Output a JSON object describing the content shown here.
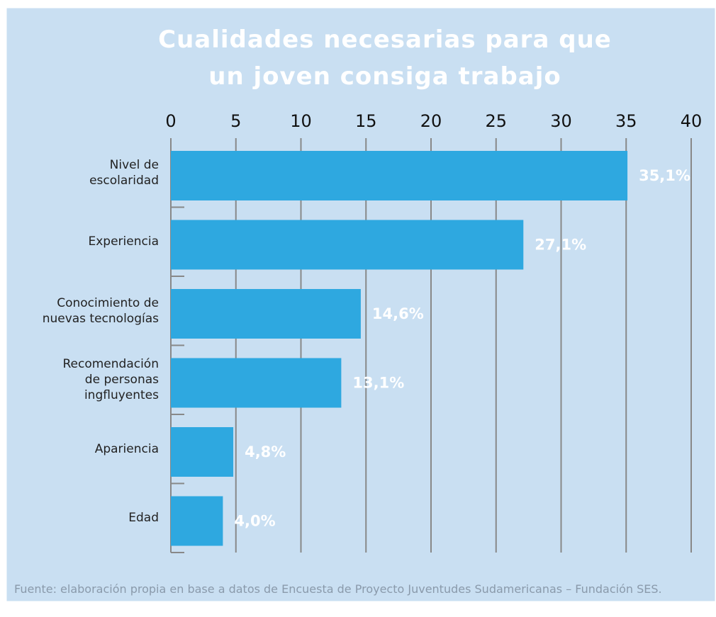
{
  "chart_data": {
    "type": "bar",
    "orientation": "horizontal",
    "title": "Cualidades necesarias para que\nun joven consiga trabajo",
    "categories": [
      "Nivel de\nescolaridad",
      "Experiencia",
      "Conocimiento de\nnuevas tecnologías",
      "Recomendación\nde personas\ningfluyentes",
      "Apariencia",
      "Edad"
    ],
    "values": [
      35.1,
      27.1,
      14.6,
      13.1,
      4.8,
      4.0
    ],
    "value_labels": [
      "35,1%",
      "27,1%",
      "14,6%",
      "13,1%",
      "4,8%",
      "4,0%"
    ],
    "color": "#2ea8e0",
    "xlim": [
      0,
      40
    ],
    "xticks": [
      0,
      5,
      10,
      15,
      20,
      25,
      30,
      35,
      40
    ],
    "grid": true,
    "source": "Fuente: elaboración propia en base a datos de Encuesta de Proyecto Juventudes Sudamericanas – Fundación SES."
  }
}
